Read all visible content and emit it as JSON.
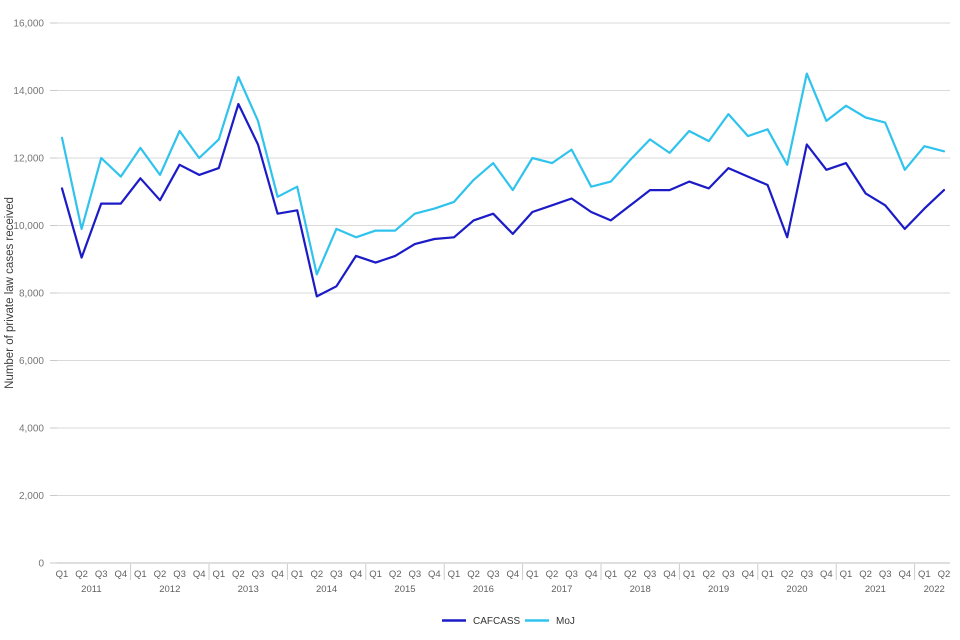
{
  "chart_data": {
    "type": "line",
    "title": "",
    "xlabel": "",
    "ylabel": "Number of private law cases received",
    "ylim": [
      0,
      16000
    ],
    "grid": "horizontal",
    "legend_position": "bottom",
    "yticks": [
      {
        "value": 0,
        "label": "0"
      },
      {
        "value": 2000,
        "label": "2,000"
      },
      {
        "value": 4000,
        "label": "4,000"
      },
      {
        "value": 6000,
        "label": "6,000"
      },
      {
        "value": 8000,
        "label": "8,000"
      },
      {
        "value": 10000,
        "label": "10,000"
      },
      {
        "value": 12000,
        "label": "12,000"
      },
      {
        "value": 14000,
        "label": "14,000"
      },
      {
        "value": 16000,
        "label": "16,000"
      }
    ],
    "years": [
      {
        "year": "2011",
        "quarters": [
          "Q1",
          "Q2",
          "Q3",
          "Q4"
        ]
      },
      {
        "year": "2012",
        "quarters": [
          "Q1",
          "Q2",
          "Q3",
          "Q4"
        ]
      },
      {
        "year": "2013",
        "quarters": [
          "Q1",
          "Q2",
          "Q3",
          "Q4"
        ]
      },
      {
        "year": "2014",
        "quarters": [
          "Q1",
          "Q2",
          "Q3",
          "Q4"
        ]
      },
      {
        "year": "2015",
        "quarters": [
          "Q1",
          "Q2",
          "Q3",
          "Q4"
        ]
      },
      {
        "year": "2016",
        "quarters": [
          "Q1",
          "Q2",
          "Q3",
          "Q4"
        ]
      },
      {
        "year": "2017",
        "quarters": [
          "Q1",
          "Q2",
          "Q3",
          "Q4"
        ]
      },
      {
        "year": "2018",
        "quarters": [
          "Q1",
          "Q2",
          "Q3",
          "Q4"
        ]
      },
      {
        "year": "2019",
        "quarters": [
          "Q1",
          "Q2",
          "Q3",
          "Q4"
        ]
      },
      {
        "year": "2020",
        "quarters": [
          "Q1",
          "Q2",
          "Q3",
          "Q4"
        ]
      },
      {
        "year": "2021",
        "quarters": [
          "Q1",
          "Q2",
          "Q3",
          "Q4"
        ]
      },
      {
        "year": "2022",
        "quarters": [
          "Q1",
          "Q2"
        ]
      }
    ],
    "series": [
      {
        "name": "CAFCASS",
        "color": "#1b1bc8",
        "values": [
          11100,
          9050,
          10650,
          10650,
          11400,
          10750,
          11800,
          11500,
          11700,
          13600,
          12400,
          10350,
          10450,
          7900,
          8200,
          9100,
          8900,
          9100,
          9450,
          9600,
          9650,
          10150,
          10350,
          9750,
          10400,
          10600,
          10800,
          10400,
          10150,
          10600,
          11050,
          11050,
          11300,
          11100,
          11700,
          11450,
          11200,
          9650,
          12400,
          11650,
          11850,
          10950,
          10600,
          9900,
          10500,
          11050
        ]
      },
      {
        "name": "MoJ",
        "color": "#30c3ed",
        "values": [
          12600,
          9900,
          12000,
          11450,
          12300,
          11500,
          12800,
          12000,
          12550,
          14400,
          13100,
          10850,
          11150,
          8550,
          9900,
          9650,
          9850,
          9850,
          10350,
          10500,
          10700,
          11350,
          11850,
          11050,
          12000,
          11850,
          12250,
          11150,
          11300,
          11950,
          12550,
          12150,
          12800,
          12500,
          13300,
          12650,
          12850,
          11800,
          14500,
          13100,
          13550,
          13200,
          13050,
          11650,
          12350,
          12200
        ]
      }
    ]
  }
}
